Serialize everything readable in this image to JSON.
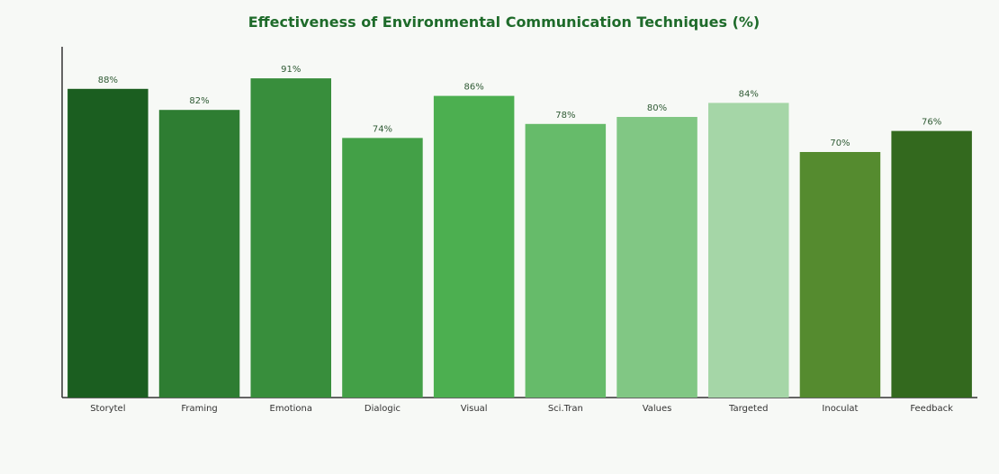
{
  "chart_data": {
    "type": "bar",
    "title": "Effectiveness of Environmental Communication Techniques (%)",
    "xlabel": "",
    "ylabel": "",
    "categories": [
      "Storytel",
      "Framing",
      "Emotiona",
      "Dialogic",
      "Visual",
      "Sci.Tran",
      "Values",
      "Targeted",
      "Inoculat",
      "Feedback"
    ],
    "values": [
      88,
      82,
      91,
      74,
      86,
      78,
      80,
      84,
      70,
      76
    ],
    "data_labels": [
      "88%",
      "82%",
      "91%",
      "74%",
      "86%",
      "78%",
      "80%",
      "84%",
      "70%",
      "76%"
    ],
    "colors": [
      "#1b5e20",
      "#2e7d32",
      "#388e3c",
      "#43a047",
      "#4caf50",
      "#66bb6a",
      "#81c784",
      "#a5d6a7",
      "#558b2f",
      "#33691e"
    ],
    "ylim": [
      0,
      100
    ],
    "grid": false,
    "legend": "none",
    "title_color": "#1e6b2a",
    "background": "#f7f9f6"
  }
}
